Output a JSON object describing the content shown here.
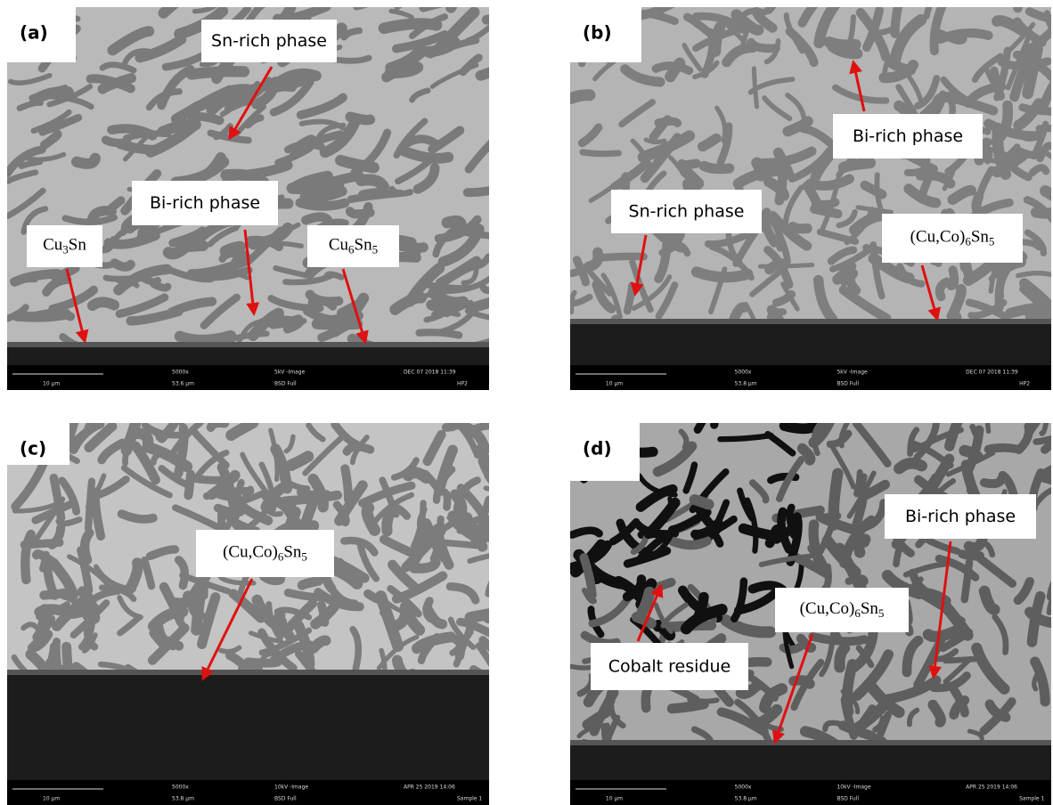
{
  "panels": [
    {
      "letter": "(a)",
      "labels": [
        {
          "parts": [
            "Sn-rich phase"
          ]
        },
        {
          "parts": [
            "Bi-rich phase"
          ]
        },
        {
          "parts": [
            "Cu",
            "3",
            "Sn"
          ]
        },
        {
          "parts": [
            "Cu",
            "6",
            "Sn",
            "5"
          ]
        }
      ],
      "info": {
        "scale": "10 µm",
        "mag": "5000x",
        "hfw": "53.6 µm",
        "mode": "5kV -Image",
        "detector": "BSD Full",
        "date": "DEC 07 2018 11:39",
        "sample": "HP2"
      }
    },
    {
      "letter": "(b)",
      "labels": [
        {
          "parts": [
            "Bi-rich phase"
          ]
        },
        {
          "parts": [
            "Sn-rich phase"
          ]
        },
        {
          "parts": [
            "(Cu,Co)",
            "6",
            "Sn",
            "5"
          ]
        }
      ],
      "info": {
        "scale": "10 µm",
        "mag": "5000x",
        "hfw": "53.8 µm",
        "mode": "5kV -Image",
        "detector": "BSD Full",
        "date": "DEC 07 2018 11:39",
        "sample": "HP2"
      }
    },
    {
      "letter": "(c)",
      "labels": [
        {
          "parts": [
            "(Cu,Co)",
            "6",
            "Sn",
            "5"
          ]
        }
      ],
      "info": {
        "scale": "10 µm",
        "mag": "5000x",
        "hfw": "53.8 µm",
        "mode": "10kV -Image",
        "detector": "BSD Full",
        "date": "APR 25 2019 14:06",
        "sample": "Sample 1"
      }
    },
    {
      "letter": "(d)",
      "labels": [
        {
          "parts": [
            "Bi-rich phase"
          ]
        },
        {
          "parts": [
            "(Cu,Co)",
            "6",
            "Sn",
            "5"
          ]
        },
        {
          "parts": [
            "Cobalt residue"
          ]
        }
      ],
      "info": {
        "scale": "10 µm",
        "mag": "5000x",
        "hfw": "53.8 µm",
        "mode": "10kV -Image",
        "detector": "BSD Full",
        "date": "APR 25 2019 14:06",
        "sample": "Sample 1"
      }
    }
  ]
}
